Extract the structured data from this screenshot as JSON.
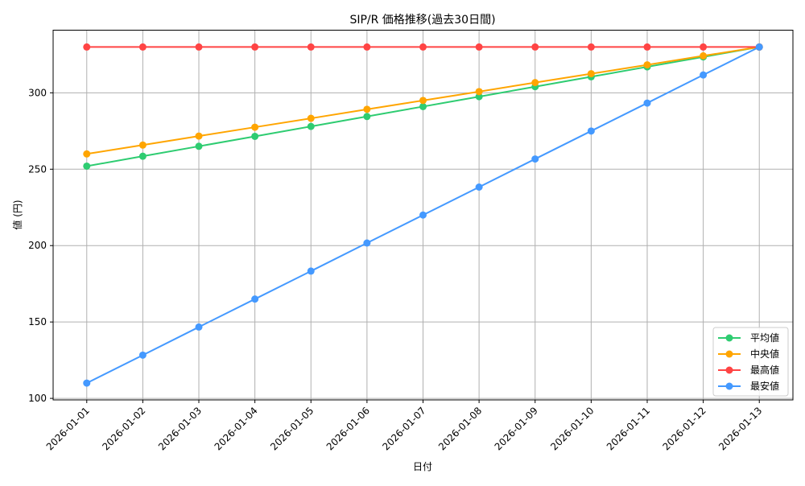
{
  "chart_data": {
    "type": "line",
    "title": "SIP/R 価格推移(過去30日間)",
    "xlabel": "日付",
    "ylabel": "値 (円)",
    "categories": [
      "2026-01-01",
      "2026-01-02",
      "2026-01-03",
      "2026-01-04",
      "2026-01-05",
      "2026-01-06",
      "2026-01-07",
      "2026-01-08",
      "2026-01-09",
      "2026-01-10",
      "2026-01-11",
      "2026-01-12",
      "2026-01-13"
    ],
    "ylim": [
      99,
      341
    ],
    "yticks": [
      100,
      150,
      200,
      250,
      300
    ],
    "grid": true,
    "legend_position": "bottom-right",
    "series": [
      {
        "name": "平均値",
        "color": "#2ecc71",
        "values": [
          252,
          258.5,
          265,
          271.5,
          278,
          284.5,
          291,
          297.5,
          304,
          310.5,
          317,
          323.5,
          330
        ]
      },
      {
        "name": "中央値",
        "color": "#ffa500",
        "values": [
          260,
          265.8,
          271.7,
          277.5,
          283.3,
          289.2,
          295,
          300.8,
          306.7,
          312.5,
          318.3,
          324.2,
          330
        ]
      },
      {
        "name": "最高値",
        "color": "#ff4444",
        "values": [
          330,
          330,
          330,
          330,
          330,
          330,
          330,
          330,
          330,
          330,
          330,
          330,
          330
        ]
      },
      {
        "name": "最安値",
        "color": "#4499ff",
        "values": [
          110,
          128.3,
          146.7,
          165,
          183.3,
          201.7,
          220,
          238.3,
          256.7,
          275,
          293.3,
          311.7,
          330
        ]
      }
    ]
  }
}
